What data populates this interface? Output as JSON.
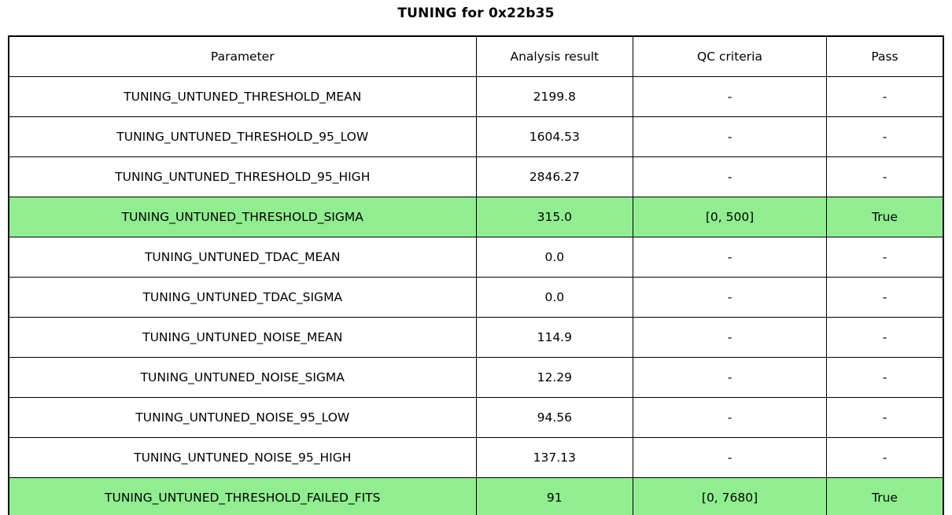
{
  "title": "TUNING for 0x22b35",
  "colors": {
    "highlight_green": "#90EE90",
    "border": "#000000",
    "background": "#FFFFFF",
    "text": "#000000"
  },
  "chart_data": {
    "type": "table",
    "title": "TUNING for 0x22b35",
    "columns": [
      "Parameter",
      "Analysis result",
      "QC criteria",
      "Pass"
    ],
    "rows": [
      {
        "parameter": "TUNING_UNTUNED_THRESHOLD_MEAN",
        "result": "2199.8",
        "qc": "-",
        "pass": "-",
        "highlight": false
      },
      {
        "parameter": "TUNING_UNTUNED_THRESHOLD_95_LOW",
        "result": "1604.53",
        "qc": "-",
        "pass": "-",
        "highlight": false
      },
      {
        "parameter": "TUNING_UNTUNED_THRESHOLD_95_HIGH",
        "result": "2846.27",
        "qc": "-",
        "pass": "-",
        "highlight": false
      },
      {
        "parameter": "TUNING_UNTUNED_THRESHOLD_SIGMA",
        "result": "315.0",
        "qc": "[0, 500]",
        "pass": "True",
        "highlight": true
      },
      {
        "parameter": "TUNING_UNTUNED_TDAC_MEAN",
        "result": "0.0",
        "qc": "-",
        "pass": "-",
        "highlight": false
      },
      {
        "parameter": "TUNING_UNTUNED_TDAC_SIGMA",
        "result": "0.0",
        "qc": "-",
        "pass": "-",
        "highlight": false
      },
      {
        "parameter": "TUNING_UNTUNED_NOISE_MEAN",
        "result": "114.9",
        "qc": "-",
        "pass": "-",
        "highlight": false
      },
      {
        "parameter": "TUNING_UNTUNED_NOISE_SIGMA",
        "result": "12.29",
        "qc": "-",
        "pass": "-",
        "highlight": false
      },
      {
        "parameter": "TUNING_UNTUNED_NOISE_95_LOW",
        "result": "94.56",
        "qc": "-",
        "pass": "-",
        "highlight": false
      },
      {
        "parameter": "TUNING_UNTUNED_NOISE_95_HIGH",
        "result": "137.13",
        "qc": "-",
        "pass": "-",
        "highlight": false
      },
      {
        "parameter": "TUNING_UNTUNED_THRESHOLD_FAILED_FITS",
        "result": "91",
        "qc": "[0, 7680]",
        "pass": "True",
        "highlight": true
      }
    ],
    "highlighted_rows": [
      3,
      10
    ],
    "layout": {
      "grid": true,
      "cell_text_align": "center",
      "title_position": "top-center"
    }
  }
}
